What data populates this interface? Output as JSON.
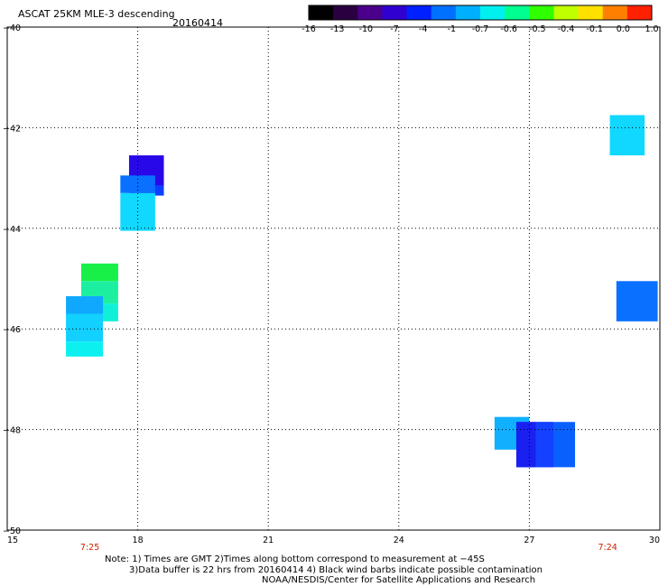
{
  "chart_data": {
    "type": "heatmap",
    "title": "ASCAT 25KM MLE-3 descending",
    "date": "20160414",
    "colorbar": {
      "tick_labels": [
        "-16",
        "-13",
        "-10",
        "-7",
        "-4",
        "-1",
        "-0.7",
        "-0.6",
        "-0.5",
        "-0.4",
        "-0.1",
        "0.0",
        "1.0"
      ],
      "colors": [
        "#000000",
        "#2a0040",
        "#4a008a",
        "#3000d0",
        "#0020ff",
        "#0070ff",
        "#00b0ff",
        "#00f0f0",
        "#00ff90",
        "#30ff00",
        "#c0ff00",
        "#ffe000",
        "#ff8000",
        "#ff2000"
      ]
    },
    "xlim": [
      15,
      30
    ],
    "ylim": [
      -50,
      -40
    ],
    "x_ticks": [
      "15",
      "18",
      "21",
      "24",
      "27",
      "30"
    ],
    "y_ticks": [
      "-40",
      "-42",
      "-44",
      "-46",
      "-48",
      "-50"
    ],
    "grid": true,
    "time_labels": [
      {
        "x": 16.9,
        "text": "7:25"
      },
      {
        "x": 28.8,
        "text": "7:24"
      }
    ],
    "cells": [
      {
        "x0": 17.8,
        "x1": 18.6,
        "y0": -42.55,
        "y1": -43.15,
        "color": "#2808e8"
      },
      {
        "x0": 17.8,
        "x1": 18.6,
        "y0": -43.15,
        "y1": -43.35,
        "color": "#0a40ff"
      },
      {
        "x0": 17.6,
        "x1": 18.4,
        "y0": -42.95,
        "y1": -43.3,
        "color": "#0a70ff"
      },
      {
        "x0": 17.6,
        "x1": 18.4,
        "y0": -43.3,
        "y1": -44.05,
        "color": "#10d8ff"
      },
      {
        "x0": 16.7,
        "x1": 17.55,
        "y0": -44.7,
        "y1": -45.05,
        "color": "#18f048"
      },
      {
        "x0": 16.7,
        "x1": 17.55,
        "y0": -45.05,
        "y1": -45.5,
        "color": "#1cf0a0"
      },
      {
        "x0": 16.7,
        "x1": 17.55,
        "y0": -45.5,
        "y1": -45.85,
        "color": "#10f0d8"
      },
      {
        "x0": 16.35,
        "x1": 17.2,
        "y0": -45.35,
        "y1": -45.7,
        "color": "#10a8ff"
      },
      {
        "x0": 16.35,
        "x1": 17.2,
        "y0": -45.7,
        "y1": -46.25,
        "color": "#12d0ff"
      },
      {
        "x0": 16.35,
        "x1": 17.2,
        "y0": -46.25,
        "y1": -46.55,
        "color": "#0cf0f0"
      },
      {
        "x0": 28.85,
        "x1": 29.65,
        "y0": -41.75,
        "y1": -42.55,
        "color": "#10d8ff"
      },
      {
        "x0": 29.0,
        "x1": 29.95,
        "y0": -45.05,
        "y1": -45.85,
        "color": "#0a70ff"
      },
      {
        "x0": 26.2,
        "x1": 27.0,
        "y0": -47.75,
        "y1": -48.4,
        "color": "#10b0ff"
      },
      {
        "x0": 26.7,
        "x1": 28.05,
        "y0": -47.85,
        "y1": -48.75,
        "color": "#0a60ff"
      },
      {
        "x0": 26.7,
        "x1": 27.15,
        "y0": -47.85,
        "y1": -48.75,
        "color": "#1a20f0"
      },
      {
        "x0": 27.15,
        "x1": 27.55,
        "y0": -47.85,
        "y1": -48.75,
        "color": "#1440ff"
      }
    ]
  },
  "notes": [
    "Note: 1) Times are GMT 2)Times along bottom correspond to measurement at −45S",
    "3)Data buffer is 22 hrs from 20160414 4) Black wind barbs indicate possible contamination",
    "NOAA/NESDIS/Center for Satellite Applications and Research"
  ]
}
